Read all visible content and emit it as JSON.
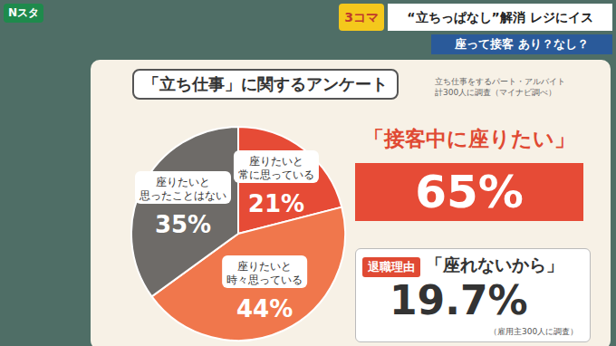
{
  "header": {
    "logo": "Nスタ",
    "badge": "3コマ",
    "headline": "“立ちっぱなし”解消 レジにイス",
    "subheadline": "座って接客 あり？なし？"
  },
  "chart_data": {
    "type": "pie",
    "title": "「立ち仕事」に関するアンケート",
    "note": [
      "立ち仕事をするパート・アルバイト",
      "計300人に調査（マイナビ調べ）"
    ],
    "categories": [
      "座りたいと常に思っている",
      "座りたいと時々思っている",
      "座りたいと思ったことはない"
    ],
    "values": [
      21,
      44,
      35
    ],
    "value_labels": [
      "21%",
      "44%",
      "35%"
    ],
    "colors": [
      "#e64b36",
      "#f0774c",
      "#6e6b68"
    ],
    "data_labels": true
  },
  "callouts": {
    "headline_label": "「接客中に座りたい」",
    "headline_value": "65%",
    "reason_badge": "退職理由",
    "reason_label": "「座れないから」",
    "reason_value": "19.7%",
    "reason_note": "（雇用主300人に調査）"
  }
}
